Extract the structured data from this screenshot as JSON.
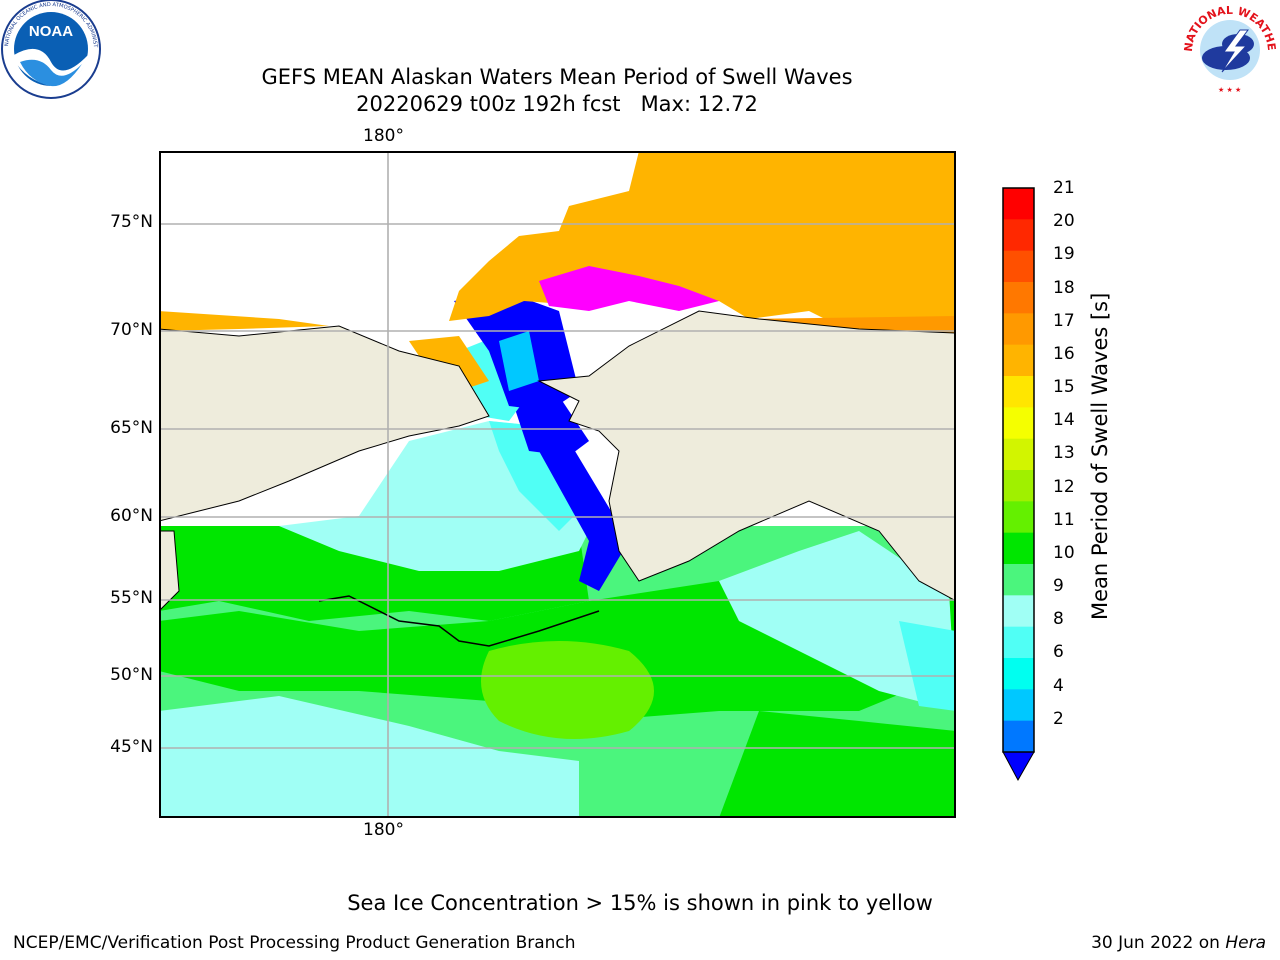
{
  "header": {
    "title_line1": "GEFS MEAN Alaskan Waters Mean Period of Swell Waves",
    "title_line2": "20220629 t00z 192h fcst   Max: 12.72"
  },
  "logos": {
    "noara_text": "NOAA",
    "noaa_ring_text": "NATIONAL OCEANIC AND ATMOSPHERIC ADMINISTRATION · U.S. DEPARTMENT OF COMMERCE",
    "nws_ring_text": "NATIONAL WEATHER SERVICE"
  },
  "map": {
    "lon_label_top": "180°",
    "lon_label_bottom": "180°",
    "lat_labels": [
      "75°N",
      "70°N",
      "65°N",
      "60°N",
      "55°N",
      "50°N",
      "45°N"
    ],
    "colors": {
      "land": "#eeecdc",
      "gridline": "#b0b0b0",
      "coast": "#000000"
    }
  },
  "colorbar": {
    "title": "Mean Period of Swell Waves [s]",
    "ticks": [
      "21",
      "20",
      "19",
      "18",
      "17",
      "16",
      "15",
      "14",
      "13",
      "12",
      "11",
      "10",
      "9",
      "8",
      "6",
      "4",
      "2"
    ],
    "colors": [
      "#ff0000",
      "#ff2800",
      "#ff5000",
      "#ff7800",
      "#ff9900",
      "#ffb400",
      "#ffe600",
      "#f5ff00",
      "#d2f500",
      "#a0f000",
      "#64f000",
      "#00e600",
      "#4bf57d",
      "#a0fff5",
      "#50fff5",
      "#00fff0",
      "#00c8ff",
      "#0078ff"
    ],
    "extend_color": "#0000ff"
  },
  "note": "Sea Ice Concentration > 15% is shown in pink to yellow",
  "footer": {
    "left": "NCEP/EMC/Verification Post Processing Product Generation Branch",
    "date": "30 Jun 2022 on ",
    "machine": "Hera"
  }
}
